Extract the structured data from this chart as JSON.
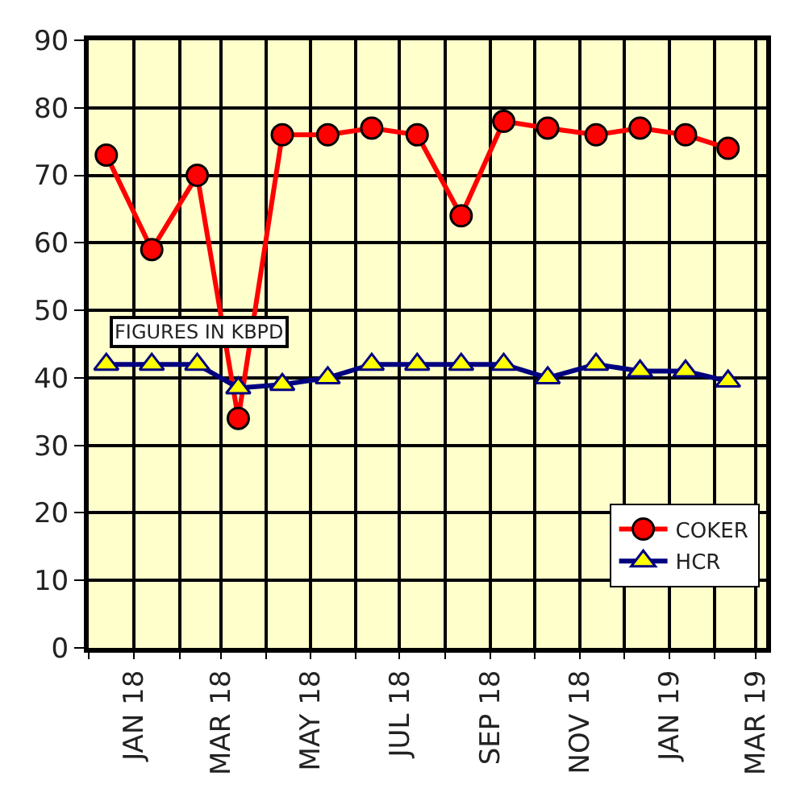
{
  "chart_data": {
    "type": "line",
    "x": [
      "2017-12-13",
      "2018-01-13",
      "2018-02-13",
      "2018-03-13",
      "2018-04-12",
      "2018-05-13",
      "2018-06-12",
      "2018-07-13",
      "2018-08-12",
      "2018-09-10",
      "2018-10-10",
      "2018-11-12",
      "2018-12-12",
      "2019-01-12",
      "2019-02-10"
    ],
    "series": [
      {
        "name": "COKER",
        "color": "#ff0000",
        "marker": "circle",
        "values": [
          73,
          59,
          70,
          34,
          76,
          76,
          77,
          76,
          64,
          78,
          77,
          76,
          77,
          76,
          74
        ]
      },
      {
        "name": "HCR",
        "color": "#000080",
        "marker": "triangle",
        "values": [
          42,
          42,
          42,
          38.5,
          39,
          40,
          42,
          42,
          42,
          42,
          40,
          42,
          41,
          41,
          39.5
        ]
      }
    ],
    "xlim": [
      "2017-12-01",
      "2019-03-08"
    ],
    "xticks": [
      {
        "value": "2017-12-01",
        "label": null
      },
      {
        "value": "2018-01-01",
        "label": "JAN 18"
      },
      {
        "value": "2018-02-01",
        "label": null
      },
      {
        "value": "2018-03-01",
        "label": "MAR 18"
      },
      {
        "value": "2018-04-01",
        "label": null
      },
      {
        "value": "2018-05-01",
        "label": "MAY 18"
      },
      {
        "value": "2018-06-01",
        "label": null
      },
      {
        "value": "2018-07-01",
        "label": "JUL 18"
      },
      {
        "value": "2018-08-01",
        "label": null
      },
      {
        "value": "2018-09-01",
        "label": "SEP 18"
      },
      {
        "value": "2018-10-01",
        "label": null
      },
      {
        "value": "2018-11-01",
        "label": "NOV 18"
      },
      {
        "value": "2018-12-01",
        "label": null
      },
      {
        "value": "2019-01-01",
        "label": "JAN 19"
      },
      {
        "value": "2019-02-01",
        "label": null
      },
      {
        "value": "2019-03-01",
        "label": "MAR 19"
      }
    ],
    "ylim": [
      0,
      90
    ],
    "yticks": [
      0,
      10,
      20,
      30,
      40,
      50,
      60,
      70,
      80,
      90
    ],
    "grid": true,
    "legend": "bottom right",
    "annotations": [
      "FIGURES IN KBPD"
    ]
  }
}
